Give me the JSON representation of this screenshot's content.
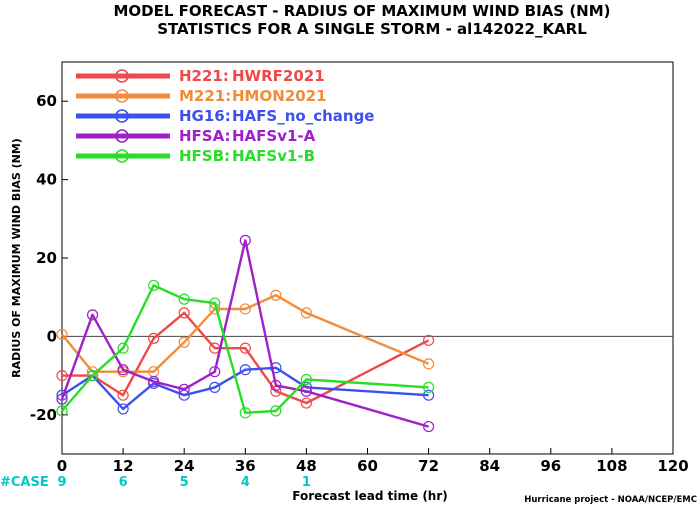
{
  "chart_data": {
    "type": "line",
    "title_line1": "MODEL FORECAST - RADIUS OF MAXIMUM WIND BIAS (NM)",
    "title_line2": "STATISTICS FOR A SINGLE STORM - al142022_KARL",
    "xlabel": "Forecast lead time (hr)",
    "ylabel": "RADIUS OF MAXIMUM WIND BIAS (NM)",
    "xlim": [
      0,
      120
    ],
    "ylim": [
      -30,
      70
    ],
    "xticks": [
      0,
      12,
      24,
      36,
      48,
      60,
      72,
      84,
      96,
      108,
      120
    ],
    "yticks": [
      -20,
      0,
      20,
      40,
      60
    ],
    "zero_line": true,
    "credit": "Hurricane project - NOAA/NCEP/EMC",
    "cases_label": "#CASE",
    "cases_color": "#00c8c8",
    "cases": [
      {
        "x": 0,
        "n": "9"
      },
      {
        "x": 12,
        "n": "6"
      },
      {
        "x": 24,
        "n": "5"
      },
      {
        "x": 36,
        "n": "4"
      },
      {
        "x": 48,
        "n": "1"
      }
    ],
    "legend_placement": "top-left",
    "series": [
      {
        "code": "H221:",
        "name": "HWRF2021",
        "color": "#f04848",
        "x": [
          0,
          6,
          12,
          18,
          24,
          30,
          36,
          42,
          48,
          72
        ],
        "y": [
          -10,
          -10,
          -15,
          -0.5,
          6,
          -3,
          -3,
          -14,
          -17,
          -1
        ]
      },
      {
        "code": "M221:",
        "name": "HMON2021",
        "color": "#f08c3c",
        "x": [
          0,
          6,
          12,
          18,
          24,
          30,
          36,
          42,
          48,
          72
        ],
        "y": [
          0.5,
          -9,
          -9,
          -9,
          -1.5,
          7,
          7,
          10.5,
          6,
          -7
        ]
      },
      {
        "code": "HG16:",
        "name": "HAFS_no_change",
        "color": "#3c50f0",
        "x": [
          0,
          6,
          12,
          18,
          24,
          30,
          36,
          42,
          48,
          72
        ],
        "y": [
          -15,
          -10,
          -18.5,
          -12,
          -15,
          -13,
          -8.5,
          -8,
          -13,
          -15
        ]
      },
      {
        "code": "HFSA:",
        "name": "HAFSv1-A",
        "color": "#a020c8",
        "x": [
          0,
          6,
          12,
          18,
          24,
          30,
          36,
          42,
          48,
          72
        ],
        "y": [
          -16,
          5.5,
          -8.5,
          -11.5,
          -13.5,
          -9,
          24.5,
          -12.5,
          -14,
          -23
        ]
      },
      {
        "code": "HFSB:",
        "name": "HAFSv1-B",
        "color": "#28dc28",
        "x": [
          0,
          6,
          12,
          18,
          24,
          30,
          36,
          42,
          48,
          72
        ],
        "y": [
          -19,
          -10,
          -3,
          13,
          9.5,
          8.5,
          -19.5,
          -19,
          -11,
          -13
        ]
      }
    ]
  }
}
